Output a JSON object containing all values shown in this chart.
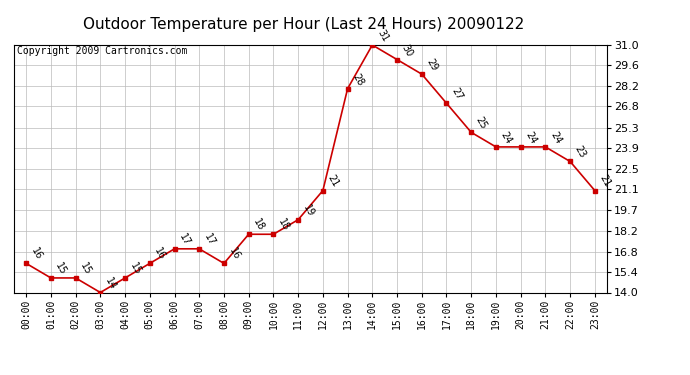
{
  "title": "Outdoor Temperature per Hour (Last 24 Hours) 20090122",
  "copyright": "Copyright 2009 Cartronics.com",
  "hours": [
    "00:00",
    "01:00",
    "02:00",
    "03:00",
    "04:00",
    "05:00",
    "06:00",
    "07:00",
    "08:00",
    "09:00",
    "10:00",
    "11:00",
    "12:00",
    "13:00",
    "14:00",
    "15:00",
    "16:00",
    "17:00",
    "18:00",
    "19:00",
    "20:00",
    "21:00",
    "22:00",
    "23:00"
  ],
  "temps": [
    16,
    15,
    15,
    14,
    15,
    16,
    17,
    17,
    16,
    18,
    18,
    19,
    21,
    28,
    31,
    30,
    29,
    27,
    25,
    24,
    24,
    24,
    23,
    21
  ],
  "ylim_min": 14.0,
  "ylim_max": 31.0,
  "yticks": [
    14.0,
    15.4,
    16.8,
    18.2,
    19.7,
    21.1,
    22.5,
    23.9,
    25.3,
    26.8,
    28.2,
    29.6,
    31.0
  ],
  "line_color": "#cc0000",
  "marker_color": "#cc0000",
  "bg_color": "#ffffff",
  "grid_color": "#bbbbbb",
  "title_fontsize": 11,
  "copyright_fontsize": 7,
  "annotation_fontsize": 7
}
